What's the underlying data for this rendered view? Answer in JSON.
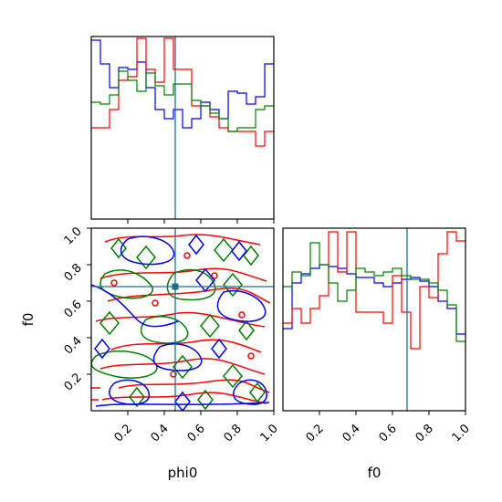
{
  "chart_data": [
    {
      "type": "histogram",
      "name": "phi0 marginal",
      "xlim": [
        0,
        1
      ],
      "x_ticks": [
        0.2,
        0.4,
        0.6,
        0.8,
        1.0
      ],
      "truth": 0.46,
      "bin_edges": [
        0.0,
        0.05,
        0.1,
        0.15,
        0.2,
        0.25,
        0.3,
        0.35,
        0.4,
        0.45,
        0.5,
        0.55,
        0.6,
        0.65,
        0.7,
        0.75,
        0.8,
        0.85,
        0.9,
        0.95,
        1.0
      ],
      "series": [
        {
          "name": "",
          "color": "#0000ff",
          "values": [
            0.98,
            0.85,
            0.72,
            0.83,
            0.82,
            0.86,
            0.72,
            0.6,
            0.55,
            0.6,
            0.5,
            0.55,
            0.64,
            0.6,
            0.55,
            0.7,
            0.69,
            0.63,
            0.67,
            0.85
          ]
        },
        {
          "name": "",
          "color": "#ff0000",
          "values": [
            0.5,
            0.5,
            0.6,
            0.76,
            0.78,
            0.99,
            0.82,
            0.75,
            0.99,
            0.82,
            0.82,
            0.62,
            0.62,
            0.56,
            0.5,
            0.48,
            0.48,
            0.48,
            0.4,
            0.48
          ]
        },
        {
          "name": "",
          "color": "#008000",
          "values": [
            0.64,
            0.63,
            0.68,
            0.81,
            0.76,
            0.7,
            0.8,
            0.73,
            0.68,
            0.74,
            0.74,
            0.65,
            0.62,
            0.58,
            0.55,
            0.48,
            0.5,
            0.5,
            0.6,
            0.62
          ]
        }
      ]
    },
    {
      "type": "contour",
      "name": "phi0 vs f0",
      "xlabel": "phi0",
      "ylabel": "f0",
      "xlim": [
        0,
        1
      ],
      "ylim": [
        0,
        1
      ],
      "x_tick_labels": [
        "0.2",
        "0.4",
        "0.6",
        "0.8",
        "1.0"
      ],
      "y_tick_labels": [
        "0.2",
        "0.4",
        "0.6",
        "0.8",
        "1.0"
      ],
      "truth": {
        "x": 0.46,
        "y": 0.68
      }
    },
    {
      "type": "histogram",
      "name": "f0 marginal",
      "xlabel": "f0",
      "xlim": [
        0,
        1
      ],
      "x_tick_labels": [
        "0.2",
        "0.4",
        "0.6",
        "0.8",
        "1.0"
      ],
      "truth": 0.68,
      "bin_edges": [
        0.0,
        0.05,
        0.1,
        0.15,
        0.2,
        0.25,
        0.3,
        0.35,
        0.4,
        0.45,
        0.5,
        0.55,
        0.6,
        0.65,
        0.7,
        0.75,
        0.8,
        0.85,
        0.9,
        0.95,
        1.0
      ],
      "series": [
        {
          "name": "",
          "color": "#0000ff",
          "values": [
            0.45,
            0.7,
            0.75,
            0.78,
            0.8,
            0.79,
            0.78,
            0.75,
            0.73,
            0.73,
            0.7,
            0.68,
            0.7,
            0.72,
            0.73,
            0.71,
            0.68,
            0.6,
            0.56,
            0.42
          ]
        },
        {
          "name": "",
          "color": "#ff0000",
          "values": [
            0.48,
            0.56,
            0.48,
            0.56,
            0.63,
            0.98,
            0.76,
            0.98,
            0.54,
            0.54,
            0.54,
            0.48,
            0.74,
            0.54,
            0.34,
            0.68,
            0.62,
            0.86,
            0.98,
            0.93
          ]
        },
        {
          "name": "",
          "color": "#008000",
          "values": [
            0.68,
            0.76,
            0.74,
            0.92,
            0.8,
            0.7,
            0.6,
            0.66,
            0.78,
            0.76,
            0.74,
            0.76,
            0.78,
            0.74,
            0.72,
            0.72,
            0.7,
            0.66,
            0.58,
            0.38
          ]
        }
      ]
    }
  ]
}
